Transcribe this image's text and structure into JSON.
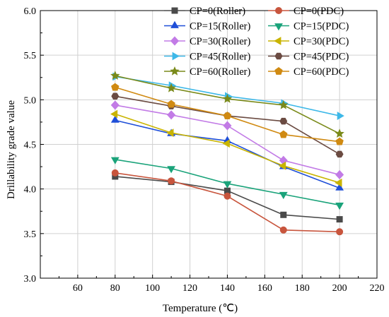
{
  "chart_data": {
    "type": "line",
    "xlabel": "Temperature (℃)",
    "ylabel": "Drillability grade value",
    "xlim": [
      40,
      220
    ],
    "ylim": [
      3.0,
      6.0
    ],
    "xticks": [
      60,
      80,
      100,
      120,
      140,
      160,
      180,
      200,
      220
    ],
    "yticks": [
      3.0,
      3.5,
      4.0,
      4.5,
      5.0,
      5.5,
      6.0
    ],
    "xtick_labels": [
      "60",
      "80",
      "100",
      "120",
      "140",
      "160",
      "180",
      "200",
      "220"
    ],
    "ytick_labels": [
      "3.0",
      "3.5",
      "4.0",
      "4.5",
      "5.0",
      "5.5",
      "6.0"
    ],
    "grid": true,
    "legend_position": "top-right",
    "x": [
      80,
      110,
      140,
      170,
      200
    ],
    "series": [
      {
        "name": "CP=0(Roller)",
        "color": "#4a4a4a",
        "marker": "square",
        "values": [
          4.14,
          4.08,
          3.98,
          3.71,
          3.66
        ]
      },
      {
        "name": "CP=0(PDC)",
        "color": "#c8553d",
        "marker": "circle",
        "values": [
          4.18,
          4.09,
          3.92,
          3.54,
          3.52
        ]
      },
      {
        "name": "CP=15(Roller)",
        "color": "#1f4fd8",
        "marker": "triangle-up",
        "values": [
          4.77,
          4.62,
          4.54,
          4.25,
          4.01
        ]
      },
      {
        "name": "CP=15(PDC)",
        "color": "#1aa37a",
        "marker": "triangle-down",
        "values": [
          4.33,
          4.23,
          4.06,
          3.94,
          3.82
        ]
      },
      {
        "name": "CP=30(Roller)",
        "color": "#c27be6",
        "marker": "diamond",
        "values": [
          4.94,
          4.83,
          4.71,
          4.32,
          4.16
        ]
      },
      {
        "name": "CP=30(PDC)",
        "color": "#c9b400",
        "marker": "triangle-left",
        "values": [
          4.84,
          4.63,
          4.51,
          4.26,
          4.07
        ]
      },
      {
        "name": "CP=45(Roller)",
        "color": "#3db8e8",
        "marker": "triangle-right",
        "values": [
          5.26,
          5.16,
          5.04,
          4.96,
          4.82
        ]
      },
      {
        "name": "CP=45(PDC)",
        "color": "#6b4b42",
        "marker": "hexagon",
        "values": [
          5.04,
          4.93,
          4.82,
          4.76,
          4.39
        ]
      },
      {
        "name": "CP=60(Roller)",
        "color": "#7a8a1a",
        "marker": "star",
        "values": [
          5.27,
          5.13,
          5.01,
          4.94,
          4.62
        ]
      },
      {
        "name": "CP=60(PDC)",
        "color": "#d08a12",
        "marker": "pentagon",
        "values": [
          5.14,
          4.95,
          4.82,
          4.61,
          4.53
        ]
      }
    ]
  }
}
